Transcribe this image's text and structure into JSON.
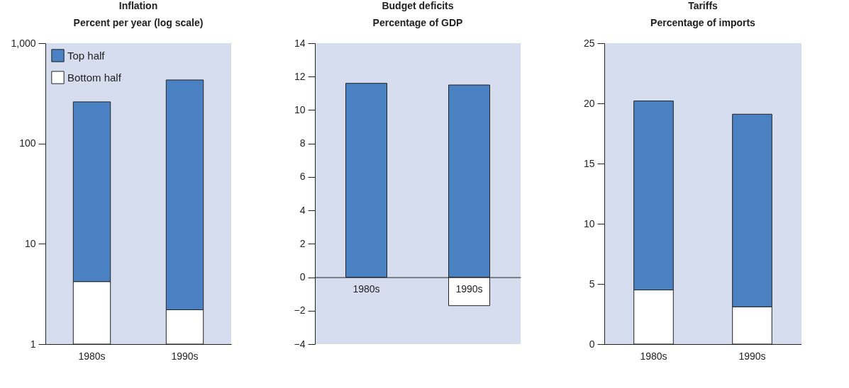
{
  "chart_data": [
    {
      "type": "bar",
      "title": "Inflation",
      "subtitle": "Percent per year (log scale)",
      "categories": [
        "1980s",
        "1990s"
      ],
      "stacked": true,
      "log": "y",
      "ylim": [
        1,
        1000
      ],
      "yticks": [
        1,
        10,
        100,
        {
          "value": 1000,
          "label": "1,000"
        }
      ],
      "legend": "top left",
      "grid": false,
      "series": [
        {
          "name": "Bottom half",
          "color": "#ffffff",
          "values": [
            4.2,
            2.2
          ]
        },
        {
          "name": "Top half",
          "color": "#4a81c2",
          "values": [
            255.8,
            427.8
          ]
        }
      ]
    },
    {
      "type": "bar",
      "title": "Budget deficits",
      "subtitle": "Percentage of GDP",
      "categories": [
        "1980s",
        "1990s"
      ],
      "stacked": true,
      "ylim": [
        -4,
        14
      ],
      "yticks": [
        {
          "value": -4,
          "label": "−4"
        },
        {
          "value": -2,
          "label": "−2"
        },
        0,
        2,
        4,
        6,
        8,
        10,
        12,
        14
      ],
      "legend": false,
      "grid": false,
      "series": [
        {
          "color": "#ffffff",
          "values": [
            null,
            -1.7
          ]
        },
        {
          "color": "#4a81c2",
          "values": [
            11.6,
            11.5
          ]
        }
      ]
    },
    {
      "type": "bar",
      "title": "Tariffs",
      "subtitle": "Percentage of imports",
      "categories": [
        "1980s",
        "1990s"
      ],
      "stacked": true,
      "ylim": [
        0,
        25
      ],
      "yticks": [
        0,
        5,
        10,
        15,
        20,
        25
      ],
      "legend": false,
      "grid": false,
      "series": [
        {
          "color": "#ffffff",
          "values": [
            4.5,
            3.1
          ]
        },
        {
          "color": "#4a81c2",
          "values": [
            15.7,
            16.0
          ]
        }
      ]
    }
  ]
}
